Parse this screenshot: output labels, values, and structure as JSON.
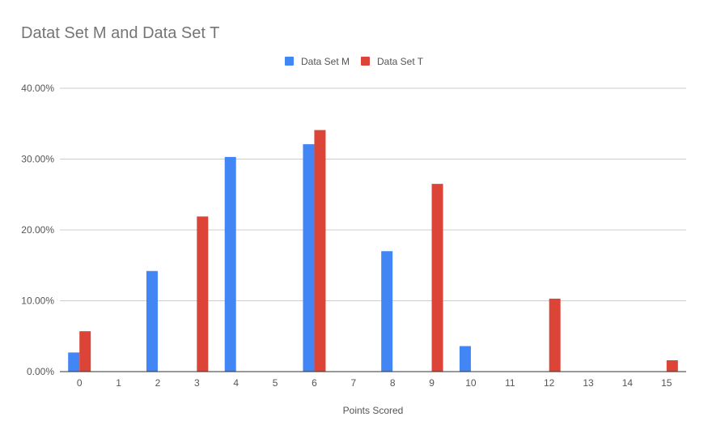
{
  "chart_data": {
    "type": "bar",
    "title": "Datat Set M and Data Set T",
    "xlabel": "Points Scored",
    "ylabel": "",
    "categories": [
      "0",
      "1",
      "2",
      "3",
      "4",
      "5",
      "6",
      "7",
      "8",
      "9",
      "10",
      "11",
      "12",
      "13",
      "14",
      "15"
    ],
    "series": [
      {
        "name": "Data Set M",
        "color": "#4285F4",
        "values": [
          2.7,
          0,
          14.2,
          0,
          30.3,
          0,
          32.1,
          0,
          17.0,
          0,
          3.6,
          0,
          0,
          0,
          0,
          0
        ]
      },
      {
        "name": "Data Set T",
        "color": "#DB4437",
        "values": [
          5.7,
          0,
          0,
          21.9,
          0,
          0,
          34.1,
          0,
          0,
          26.5,
          0,
          0,
          10.3,
          0,
          0,
          1.6
        ]
      }
    ],
    "ylim": [
      0,
      40
    ],
    "yticks": [
      "0.00%",
      "10.00%",
      "20.00%",
      "30.00%",
      "40.00%"
    ],
    "grid": true,
    "legend_position": "top"
  }
}
